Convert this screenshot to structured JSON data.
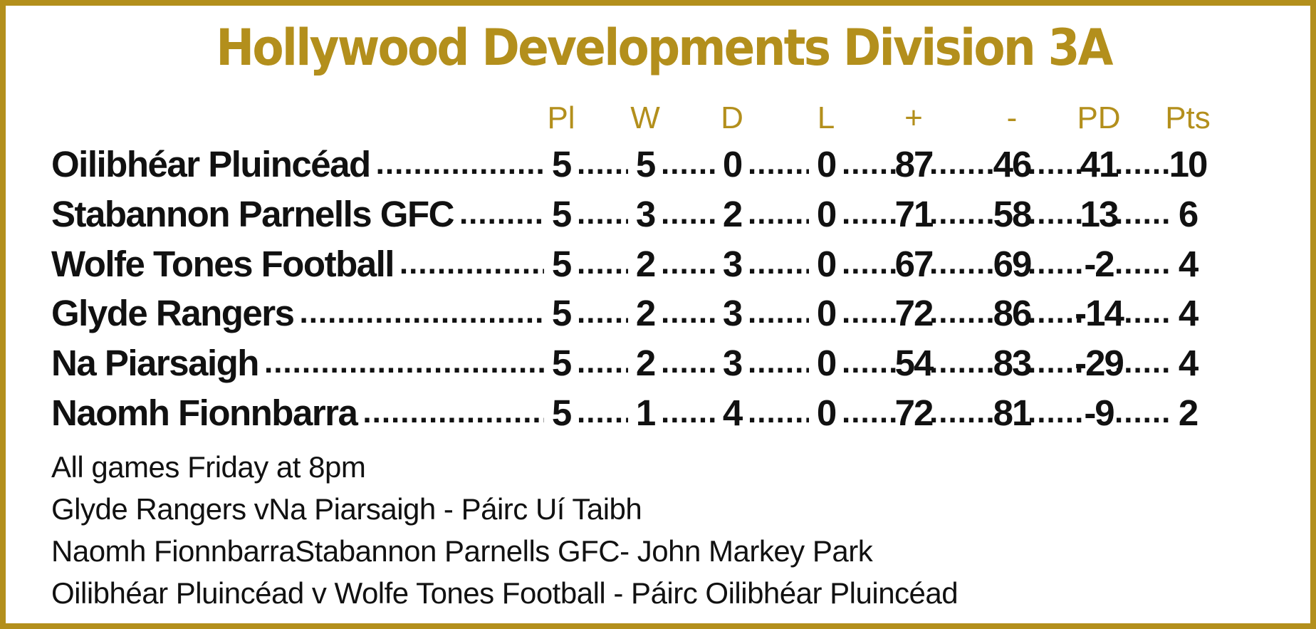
{
  "title": "Hollywood Developments Division 3A",
  "colors": {
    "accent": "#b38f1c",
    "text": "#111111",
    "background": "#ffffff"
  },
  "columns": [
    "Pl",
    "W",
    "D",
    "L",
    "+",
    "-",
    "PD",
    "Pts"
  ],
  "rows": [
    {
      "team": "Oilibhéar Pluincéad",
      "values": [
        "5",
        "5",
        "0",
        "0",
        "87",
        "46",
        "41",
        "10"
      ]
    },
    {
      "team": "Stabannon Parnells GFC",
      "values": [
        "5",
        "3",
        "2",
        "0",
        "71",
        "58",
        "13",
        "6"
      ]
    },
    {
      "team": "Wolfe Tones Football",
      "values": [
        "5",
        "2",
        "3",
        "0",
        "67",
        "69",
        "-2",
        "4"
      ]
    },
    {
      "team": "Glyde Rangers",
      "values": [
        "5",
        "2",
        "3",
        "0",
        "72",
        "86",
        "-14",
        "4"
      ]
    },
    {
      "team": "Na Piarsaigh",
      "values": [
        "5",
        "2",
        "3",
        "0",
        "54",
        "83",
        "-29",
        "4"
      ]
    },
    {
      "team": "Naomh Fionnbarra",
      "values": [
        "5",
        "1",
        "4",
        "0",
        "72",
        "81",
        "-9",
        "2"
      ]
    }
  ],
  "notes": [
    "All games Friday at 8pm",
    "Glyde Rangers vNa Piarsaigh - Páirc Uí Taibh",
    "Naomh FionnbarraStabannon Parnells GFC- John Markey Park",
    "Oilibhéar Pluincéad v Wolfe Tones Football - Páirc Oilibhéar Pluincéad"
  ]
}
